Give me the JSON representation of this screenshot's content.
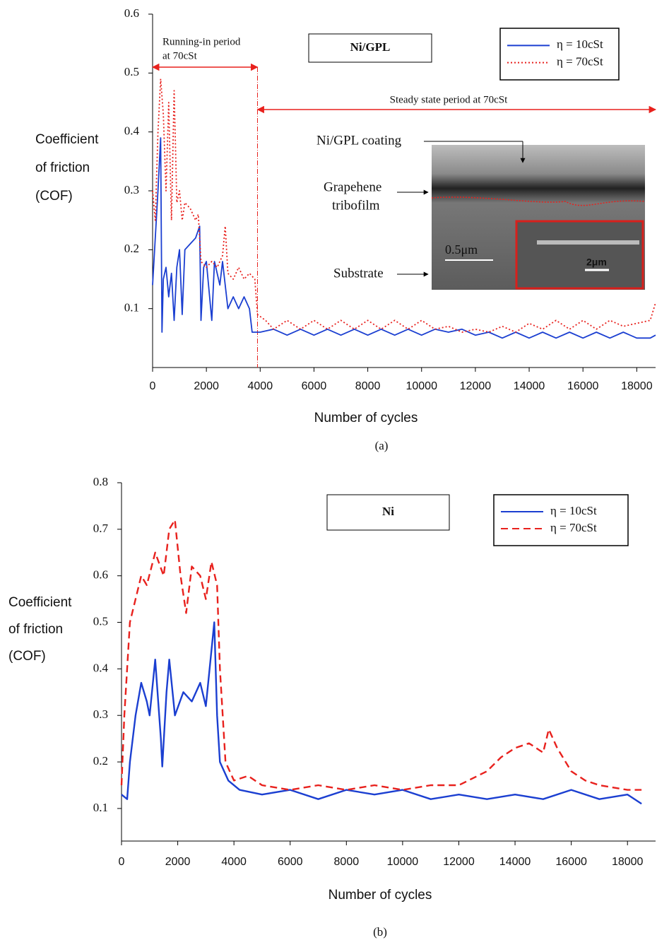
{
  "chart_data": [
    {
      "type": "line",
      "caption": "(a)",
      "box_label": "Ni/GPL",
      "ylabel": [
        "Coefficient",
        "of friction",
        "(COF)"
      ],
      "xlabel": "Number of cycles",
      "xlim": [
        0,
        18700
      ],
      "xticks": [
        0,
        2000,
        4000,
        6000,
        8000,
        10000,
        12000,
        14000,
        16000,
        18000
      ],
      "ylim": [
        0,
        0.6
      ],
      "yticks": [
        0.1,
        0.2,
        0.3,
        0.4,
        0.5,
        0.6
      ],
      "legend": "upper right",
      "divider_x": 3900,
      "annotations": [
        "Running-in period",
        "at 70cSt",
        "Steady state period at 70cSt",
        "Ni/GPL coating",
        "Grapehene",
        "tribofilm",
        "Substrate",
        "0.5μm",
        "2μm"
      ],
      "series": [
        {
          "name": "η = 10cSt",
          "color": "#1b3fd1",
          "style": "solid",
          "x": [
            0,
            100,
            200,
            300,
            350,
            400,
            500,
            600,
            700,
            800,
            900,
            1000,
            1100,
            1200,
            1400,
            1600,
            1750,
            1800,
            1900,
            2000,
            2200,
            2300,
            2500,
            2600,
            2800,
            3000,
            3200,
            3400,
            3600,
            3700,
            4000,
            4500,
            5000,
            5500,
            6000,
            6500,
            7000,
            7500,
            8000,
            8500,
            9000,
            9500,
            10000,
            10500,
            11000,
            11500,
            12000,
            12500,
            13000,
            13500,
            14000,
            14500,
            15000,
            15500,
            16000,
            16500,
            17000,
            17500,
            18000,
            18500,
            18700
          ],
          "values": [
            0.14,
            0.22,
            0.3,
            0.39,
            0.06,
            0.15,
            0.17,
            0.12,
            0.16,
            0.08,
            0.17,
            0.2,
            0.09,
            0.2,
            0.21,
            0.22,
            0.24,
            0.08,
            0.17,
            0.18,
            0.08,
            0.18,
            0.14,
            0.18,
            0.1,
            0.12,
            0.1,
            0.12,
            0.1,
            0.06,
            0.06,
            0.065,
            0.055,
            0.065,
            0.055,
            0.065,
            0.055,
            0.065,
            0.055,
            0.065,
            0.055,
            0.065,
            0.055,
            0.065,
            0.06,
            0.065,
            0.055,
            0.06,
            0.05,
            0.06,
            0.05,
            0.06,
            0.05,
            0.06,
            0.05,
            0.06,
            0.05,
            0.06,
            0.05,
            0.05,
            0.055
          ]
        },
        {
          "name": "η = 70cSt",
          "color": "#e8211d",
          "style": "dotted",
          "x": [
            0,
            100,
            200,
            300,
            400,
            500,
            600,
            700,
            800,
            900,
            1000,
            1100,
            1200,
            1400,
            1600,
            1700,
            1800,
            2000,
            2200,
            2400,
            2600,
            2700,
            2800,
            3000,
            3200,
            3400,
            3600,
            3800,
            3900,
            4200,
            4500,
            5000,
            5500,
            6000,
            6500,
            7000,
            7500,
            8000,
            8500,
            9000,
            9500,
            10000,
            10500,
            11000,
            11500,
            12000,
            12500,
            13000,
            13500,
            14000,
            14500,
            15000,
            15500,
            16000,
            16500,
            17000,
            17500,
            18000,
            18500,
            18700
          ],
          "values": [
            0.3,
            0.25,
            0.4,
            0.49,
            0.43,
            0.3,
            0.45,
            0.25,
            0.47,
            0.28,
            0.3,
            0.25,
            0.28,
            0.27,
            0.25,
            0.26,
            0.18,
            0.17,
            0.18,
            0.17,
            0.19,
            0.24,
            0.16,
            0.15,
            0.17,
            0.15,
            0.16,
            0.15,
            0.09,
            0.08,
            0.065,
            0.08,
            0.065,
            0.08,
            0.065,
            0.08,
            0.065,
            0.08,
            0.065,
            0.08,
            0.065,
            0.08,
            0.065,
            0.07,
            0.06,
            0.065,
            0.06,
            0.07,
            0.06,
            0.075,
            0.065,
            0.08,
            0.065,
            0.08,
            0.065,
            0.08,
            0.07,
            0.075,
            0.08,
            0.11
          ]
        }
      ]
    },
    {
      "type": "line",
      "caption": "(b)",
      "box_label": "Ni",
      "ylabel": [
        "Coefficient",
        "of friction",
        "(COF)"
      ],
      "xlabel": "Number of cycles",
      "xlim": [
        0,
        19000
      ],
      "xticks": [
        0,
        2000,
        4000,
        6000,
        8000,
        10000,
        12000,
        14000,
        16000,
        18000
      ],
      "ylim": [
        0.03,
        0.8
      ],
      "yticks": [
        0.1,
        0.2,
        0.3,
        0.4,
        0.5,
        0.6,
        0.7,
        0.8
      ],
      "legend": "upper right",
      "series": [
        {
          "name": "η = 10cSt",
          "color": "#1b3fd1",
          "style": "solid",
          "x": [
            0,
            200,
            300,
            500,
            700,
            900,
            1000,
            1200,
            1400,
            1450,
            1600,
            1700,
            1900,
            2200,
            2500,
            2800,
            3000,
            3300,
            3400,
            3500,
            3800,
            4200,
            5000,
            6000,
            7000,
            8000,
            9000,
            10000,
            11000,
            12000,
            13000,
            14000,
            15000,
            16000,
            17000,
            18000,
            18500
          ],
          "values": [
            0.13,
            0.12,
            0.2,
            0.3,
            0.37,
            0.33,
            0.3,
            0.42,
            0.25,
            0.19,
            0.35,
            0.42,
            0.3,
            0.35,
            0.33,
            0.37,
            0.32,
            0.5,
            0.3,
            0.2,
            0.16,
            0.14,
            0.13,
            0.14,
            0.12,
            0.14,
            0.13,
            0.14,
            0.12,
            0.13,
            0.12,
            0.13,
            0.12,
            0.14,
            0.12,
            0.13,
            0.11
          ]
        },
        {
          "name": "η = 70cSt",
          "color": "#e8211d",
          "style": "dashed",
          "x": [
            0,
            100,
            300,
            500,
            700,
            900,
            1200,
            1500,
            1700,
            1900,
            2100,
            2300,
            2500,
            2800,
            3000,
            3200,
            3400,
            3500,
            3700,
            4000,
            4500,
            5000,
            6000,
            7000,
            8000,
            9000,
            10000,
            11000,
            12000,
            13000,
            13500,
            14000,
            14500,
            15000,
            15200,
            15500,
            16000,
            16500,
            17000,
            18000,
            18500
          ],
          "values": [
            0.15,
            0.3,
            0.5,
            0.55,
            0.6,
            0.58,
            0.65,
            0.6,
            0.7,
            0.72,
            0.6,
            0.52,
            0.62,
            0.6,
            0.55,
            0.63,
            0.58,
            0.4,
            0.2,
            0.16,
            0.17,
            0.15,
            0.14,
            0.15,
            0.14,
            0.15,
            0.14,
            0.15,
            0.15,
            0.18,
            0.21,
            0.23,
            0.24,
            0.22,
            0.27,
            0.23,
            0.18,
            0.16,
            0.15,
            0.14,
            0.14
          ]
        }
      ]
    }
  ]
}
